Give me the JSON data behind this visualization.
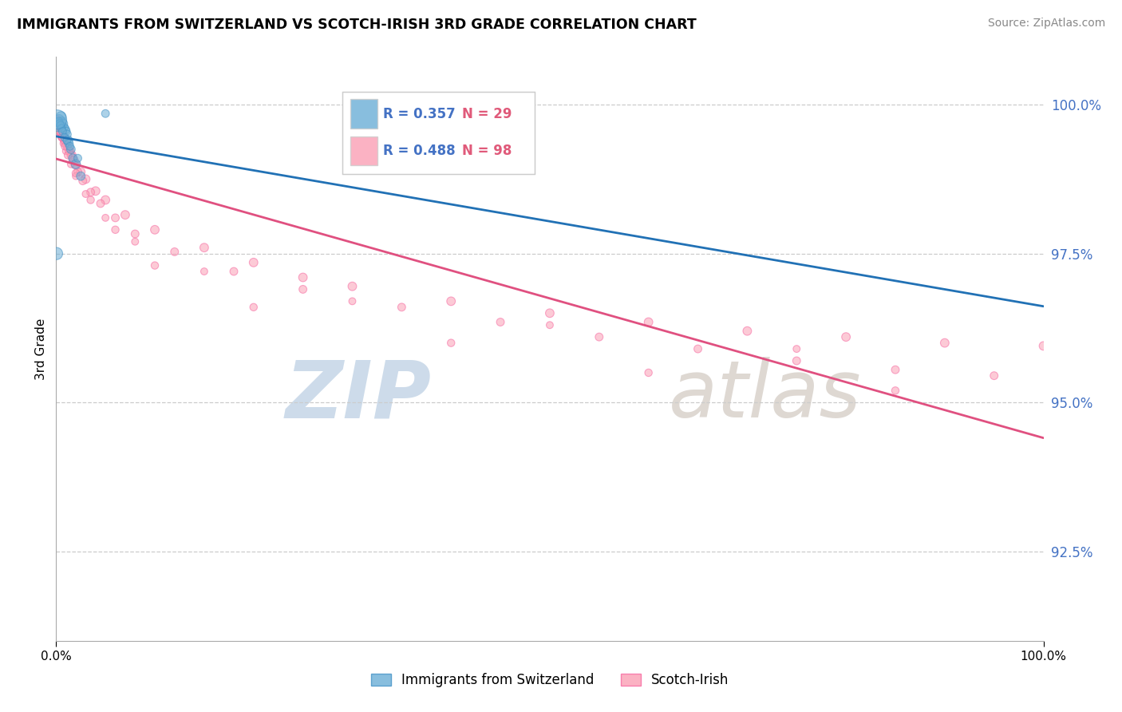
{
  "title": "IMMIGRANTS FROM SWITZERLAND VS SCOTCH-IRISH 3RD GRADE CORRELATION CHART",
  "source": "Source: ZipAtlas.com",
  "ylabel": "3rd Grade",
  "yticks": [
    92.5,
    95.0,
    97.5,
    100.0
  ],
  "ytick_labels": [
    "92.5%",
    "95.0%",
    "97.5%",
    "100.0%"
  ],
  "xmin": 0.0,
  "xmax": 100.0,
  "ymin": 91.0,
  "ymax": 100.8,
  "blue_R": 0.357,
  "blue_N": 29,
  "pink_R": 0.488,
  "pink_N": 98,
  "blue_color": "#6baed6",
  "pink_color": "#fa9fb5",
  "blue_edge_color": "#4292c6",
  "pink_edge_color": "#f768a1",
  "blue_label": "Immigrants from Switzerland",
  "pink_label": "Scotch-Irish",
  "blue_trend_color": "#2171b5",
  "pink_trend_color": "#e05080",
  "watermark_zip": "ZIP",
  "watermark_atlas": "atlas",
  "blue_x": [
    0.2,
    0.3,
    0.4,
    0.5,
    0.6,
    0.7,
    0.8,
    0.9,
    1.0,
    1.1,
    1.2,
    1.3,
    1.5,
    1.7,
    2.0,
    2.5,
    0.15,
    0.25,
    0.35,
    0.45,
    0.55,
    0.65,
    0.85,
    1.1,
    1.4,
    2.2,
    5.0,
    0.1,
    0.05
  ],
  "blue_y": [
    99.65,
    99.75,
    99.7,
    99.8,
    99.72,
    99.68,
    99.62,
    99.58,
    99.55,
    99.5,
    99.4,
    99.35,
    99.25,
    99.1,
    99.0,
    98.8,
    99.7,
    99.72,
    99.68,
    99.65,
    99.6,
    99.55,
    99.45,
    99.4,
    99.3,
    99.1,
    99.85,
    99.75,
    97.5
  ],
  "blue_sizes": [
    120,
    80,
    60,
    80,
    60,
    70,
    60,
    70,
    60,
    60,
    70,
    60,
    60,
    60,
    70,
    60,
    50,
    50,
    50,
    50,
    50,
    50,
    50,
    50,
    50,
    50,
    50,
    300,
    120
  ],
  "pink_x": [
    0.05,
    0.1,
    0.15,
    0.2,
    0.25,
    0.3,
    0.35,
    0.4,
    0.5,
    0.6,
    0.7,
    0.8,
    0.9,
    1.0,
    1.2,
    1.4,
    1.6,
    1.8,
    2.0,
    2.5,
    3.0,
    4.0,
    5.0,
    7.0,
    10.0,
    15.0,
    20.0,
    25.0,
    30.0,
    40.0,
    50.0,
    60.0,
    70.0,
    80.0,
    90.0,
    100.0,
    0.08,
    0.12,
    0.18,
    0.22,
    0.28,
    0.32,
    0.42,
    0.52,
    0.62,
    0.72,
    0.82,
    0.92,
    1.1,
    1.3,
    1.5,
    1.7,
    1.9,
    2.2,
    2.7,
    3.5,
    4.5,
    6.0,
    8.0,
    12.0,
    18.0,
    25.0,
    35.0,
    45.0,
    55.0,
    65.0,
    75.0,
    85.0,
    95.0,
    0.06,
    0.14,
    0.24,
    0.34,
    0.44,
    0.54,
    0.75,
    1.0,
    1.5,
    2.0,
    3.0,
    5.0,
    8.0,
    15.0,
    30.0,
    50.0,
    75.0,
    0.1,
    0.2,
    0.4,
    0.6,
    0.9,
    1.2,
    2.0,
    3.5,
    6.0,
    10.0,
    20.0,
    40.0,
    60.0,
    85.0
  ],
  "pink_y": [
    99.75,
    99.72,
    99.7,
    99.68,
    99.65,
    99.62,
    99.6,
    99.57,
    99.53,
    99.5,
    99.47,
    99.44,
    99.4,
    99.37,
    99.3,
    99.22,
    99.15,
    99.07,
    99.0,
    98.87,
    98.75,
    98.55,
    98.4,
    98.15,
    97.9,
    97.6,
    97.35,
    97.1,
    96.95,
    96.7,
    96.5,
    96.35,
    96.2,
    96.1,
    96.0,
    95.95,
    99.72,
    99.7,
    99.67,
    99.64,
    99.62,
    99.59,
    99.55,
    99.51,
    99.47,
    99.44,
    99.4,
    99.36,
    99.3,
    99.22,
    99.15,
    99.07,
    98.99,
    98.87,
    98.72,
    98.53,
    98.34,
    98.1,
    97.83,
    97.53,
    97.2,
    96.9,
    96.6,
    96.35,
    96.1,
    95.9,
    95.7,
    95.55,
    95.45,
    99.73,
    99.69,
    99.63,
    99.57,
    99.51,
    99.45,
    99.35,
    99.22,
    99.0,
    98.8,
    98.5,
    98.1,
    97.7,
    97.2,
    96.7,
    96.3,
    95.9,
    99.7,
    99.65,
    99.55,
    99.45,
    99.3,
    99.15,
    98.85,
    98.4,
    97.9,
    97.3,
    96.6,
    96.0,
    95.5,
    95.2
  ],
  "pink_sizes": [
    60,
    60,
    60,
    60,
    60,
    60,
    60,
    60,
    60,
    60,
    60,
    60,
    60,
    60,
    60,
    60,
    60,
    60,
    60,
    60,
    60,
    60,
    60,
    60,
    60,
    60,
    60,
    60,
    60,
    60,
    60,
    60,
    60,
    60,
    60,
    60,
    50,
    50,
    50,
    50,
    50,
    50,
    50,
    50,
    50,
    50,
    50,
    50,
    50,
    50,
    50,
    50,
    50,
    50,
    50,
    50,
    50,
    50,
    50,
    50,
    50,
    50,
    50,
    50,
    50,
    50,
    50,
    50,
    50,
    40,
    40,
    40,
    40,
    40,
    40,
    40,
    40,
    40,
    40,
    40,
    40,
    40,
    40,
    40,
    40,
    40,
    45,
    45,
    45,
    45,
    45,
    45,
    45,
    45,
    45,
    45,
    45,
    45,
    45,
    45
  ]
}
